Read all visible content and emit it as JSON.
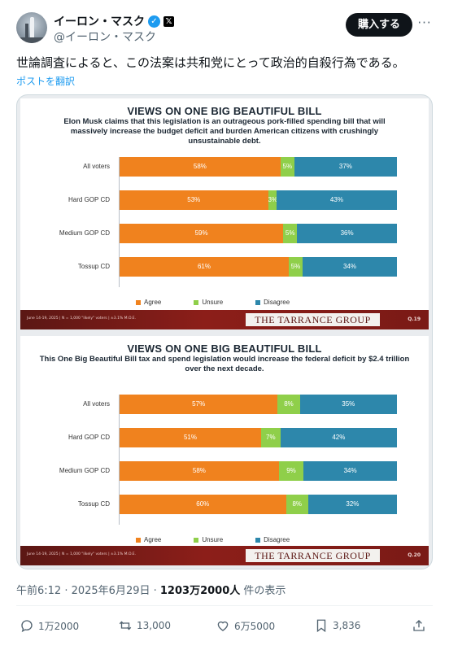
{
  "header": {
    "display_name": "イーロン・マスク",
    "handle": "@イーロン・マスク",
    "verified_icon": "✓",
    "x_badge": "𝕏",
    "subscribe_label": "購入する",
    "more_icon": "···"
  },
  "tweet": {
    "text": "世論調査によると、この法案は共和党にとって政治的自殺行為である。",
    "translate_label": "ポストを翻訳"
  },
  "slides": [
    {
      "title": "VIEWS ON ONE BIG BEAUTIFUL BILL",
      "subtitle": "Elon Musk claims that this legislation is an outrageous pork-filled spending bill that will massively increase the budget deficit and burden American citizens with crushingly unsustainable debt.",
      "footer_note": "June 14-19, 2025 | N = 1,000 \"likely\" voters | ±3.1% M.O.E.",
      "logo": "THE TARRANCE GROUP",
      "question": "Q.19"
    },
    {
      "title": "VIEWS ON ONE BIG BEAUTIFUL BILL",
      "subtitle": "This One Big Beautiful Bill tax and spend legislation would increase the federal deficit by $2.4 trillion over the next decade.",
      "footer_note": "June 14-19, 2025 | N = 1,000 \"likely\" voters | ±3.1% M.O.E.",
      "logo": "THE TARRANCE GROUP",
      "question": "Q.20"
    }
  ],
  "chart_data": [
    {
      "type": "bar",
      "stacked": true,
      "orientation": "horizontal",
      "title": "VIEWS ON ONE BIG BEAUTIFUL BILL",
      "categories": [
        "All voters",
        "Hard GOP CD",
        "Medium GOP CD",
        "Tossup CD"
      ],
      "series": [
        {
          "name": "Agree",
          "values": [
            58,
            53,
            59,
            61
          ],
          "color": "#f0821e"
        },
        {
          "name": "Unsure",
          "values": [
            5,
            3,
            5,
            5
          ],
          "color": "#8fcf4a"
        },
        {
          "name": "Disagree",
          "values": [
            37,
            43,
            36,
            34
          ],
          "color": "#2d87ab"
        }
      ],
      "xlim": [
        0,
        100
      ],
      "legend": "bottom",
      "grid": false
    },
    {
      "type": "bar",
      "stacked": true,
      "orientation": "horizontal",
      "title": "VIEWS ON ONE BIG BEAUTIFUL BILL",
      "categories": [
        "All voters",
        "Hard GOP CD",
        "Medium GOP CD",
        "Tossup CD"
      ],
      "series": [
        {
          "name": "Agree",
          "values": [
            57,
            51,
            58,
            60
          ],
          "color": "#f0821e"
        },
        {
          "name": "Unsure",
          "values": [
            8,
            7,
            9,
            8
          ],
          "color": "#8fcf4a"
        },
        {
          "name": "Disagree",
          "values": [
            35,
            42,
            34,
            32
          ],
          "color": "#2d87ab"
        }
      ],
      "xlim": [
        0,
        100
      ],
      "legend": "bottom",
      "grid": false
    }
  ],
  "meta": {
    "time": "午前6:12 · 2025年6月29日 · ",
    "views": "1203万2000人",
    "views_suffix": " 件の表示"
  },
  "actions": {
    "replies": "1万2000",
    "reposts": "13,000",
    "likes": "6万5000",
    "bookmarks": "3,836"
  }
}
